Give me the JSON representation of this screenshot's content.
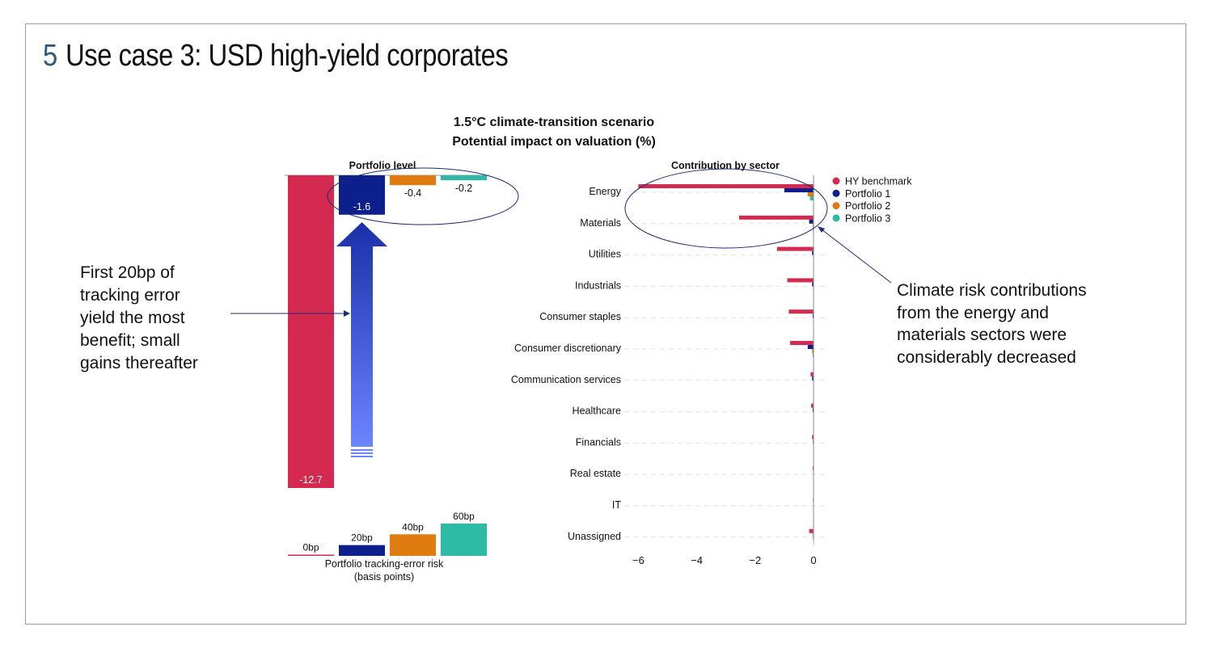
{
  "title": {
    "number": "5",
    "text": "Use case 3: USD high-yield corporates"
  },
  "subtitle": {
    "line1": "1.5°C climate-transition scenario",
    "line2": "Potential impact on valuation  (%)"
  },
  "annotations": {
    "left": [
      "First 20bp of",
      "tracking error",
      "yield the most",
      "benefit; small",
      "gains thereafter"
    ],
    "right": [
      "Climate risk contributions",
      "from the energy and",
      "materials sectors were",
      "considerably decreased"
    ]
  },
  "colors": {
    "hy": "#d42a4f",
    "p1": "#0c1f8c",
    "p2": "#e07b10",
    "p3": "#2dbba6",
    "arrow_top": "#1a2fa8",
    "arrow_bottom": "#6a86ff",
    "ellipse": "#1a2b7a"
  },
  "chart_data": [
    {
      "type": "bar",
      "title": "Portfolio level",
      "categories": [
        "HY benchmark",
        "Portfolio 1",
        "Portfolio 2",
        "Portfolio 3"
      ],
      "values": [
        -12.7,
        -1.6,
        -0.4,
        -0.2
      ],
      "value_labels": [
        "-12.7",
        "-1.6",
        "-0.4",
        "-0.2"
      ],
      "ylabel": "Potential impact on valuation (%)",
      "ylim": [
        -13,
        0
      ]
    },
    {
      "type": "bar",
      "title": "Portfolio tracking-error risk",
      "xlabel_line1": "Portfolio tracking-error risk",
      "xlabel_line2": "(basis points)",
      "categories": [
        "HY benchmark",
        "Portfolio 1",
        "Portfolio 2",
        "Portfolio 3"
      ],
      "values": [
        0,
        20,
        40,
        60
      ],
      "value_labels": [
        "0bp",
        "20bp",
        "40bp",
        "60bp"
      ],
      "ylim": [
        0,
        60
      ]
    },
    {
      "type": "bar",
      "orientation": "horizontal",
      "title": "Contribution by sector",
      "categories": [
        "Energy",
        "Materials",
        "Utilities",
        "Industrials",
        "Consumer staples",
        "Consumer discretionary",
        "Communication services",
        "Healthcare",
        "Financials",
        "Real estate",
        "IT",
        "Unassigned"
      ],
      "series": [
        {
          "name": "HY benchmark",
          "values": [
            -6.0,
            -2.55,
            -1.25,
            -0.9,
            -0.85,
            -0.8,
            -0.1,
            -0.08,
            -0.05,
            -0.03,
            -0.02,
            -0.15
          ]
        },
        {
          "name": "Portfolio 1",
          "values": [
            -1.0,
            -0.15,
            -0.05,
            -0.05,
            -0.03,
            -0.2,
            -0.05,
            -0.03,
            -0.02,
            -0.01,
            -0.01,
            -0.02
          ]
        },
        {
          "name": "Portfolio 2",
          "values": [
            -0.2,
            -0.03,
            -0.01,
            -0.01,
            -0.01,
            -0.05,
            -0.01,
            -0.01,
            -0.01,
            0.0,
            0.0,
            -0.01
          ]
        },
        {
          "name": "Portfolio 3",
          "values": [
            -0.12,
            -0.02,
            -0.01,
            -0.01,
            -0.01,
            -0.03,
            -0.01,
            -0.01,
            0.0,
            0.0,
            0.0,
            0.0
          ]
        }
      ],
      "xticks": [
        -6,
        -4,
        -2,
        0
      ],
      "xtick_labels": [
        "−6",
        "−4",
        "−2",
        "0"
      ],
      "xlim": [
        -6.3,
        0.4
      ],
      "legend": "top-right"
    }
  ]
}
